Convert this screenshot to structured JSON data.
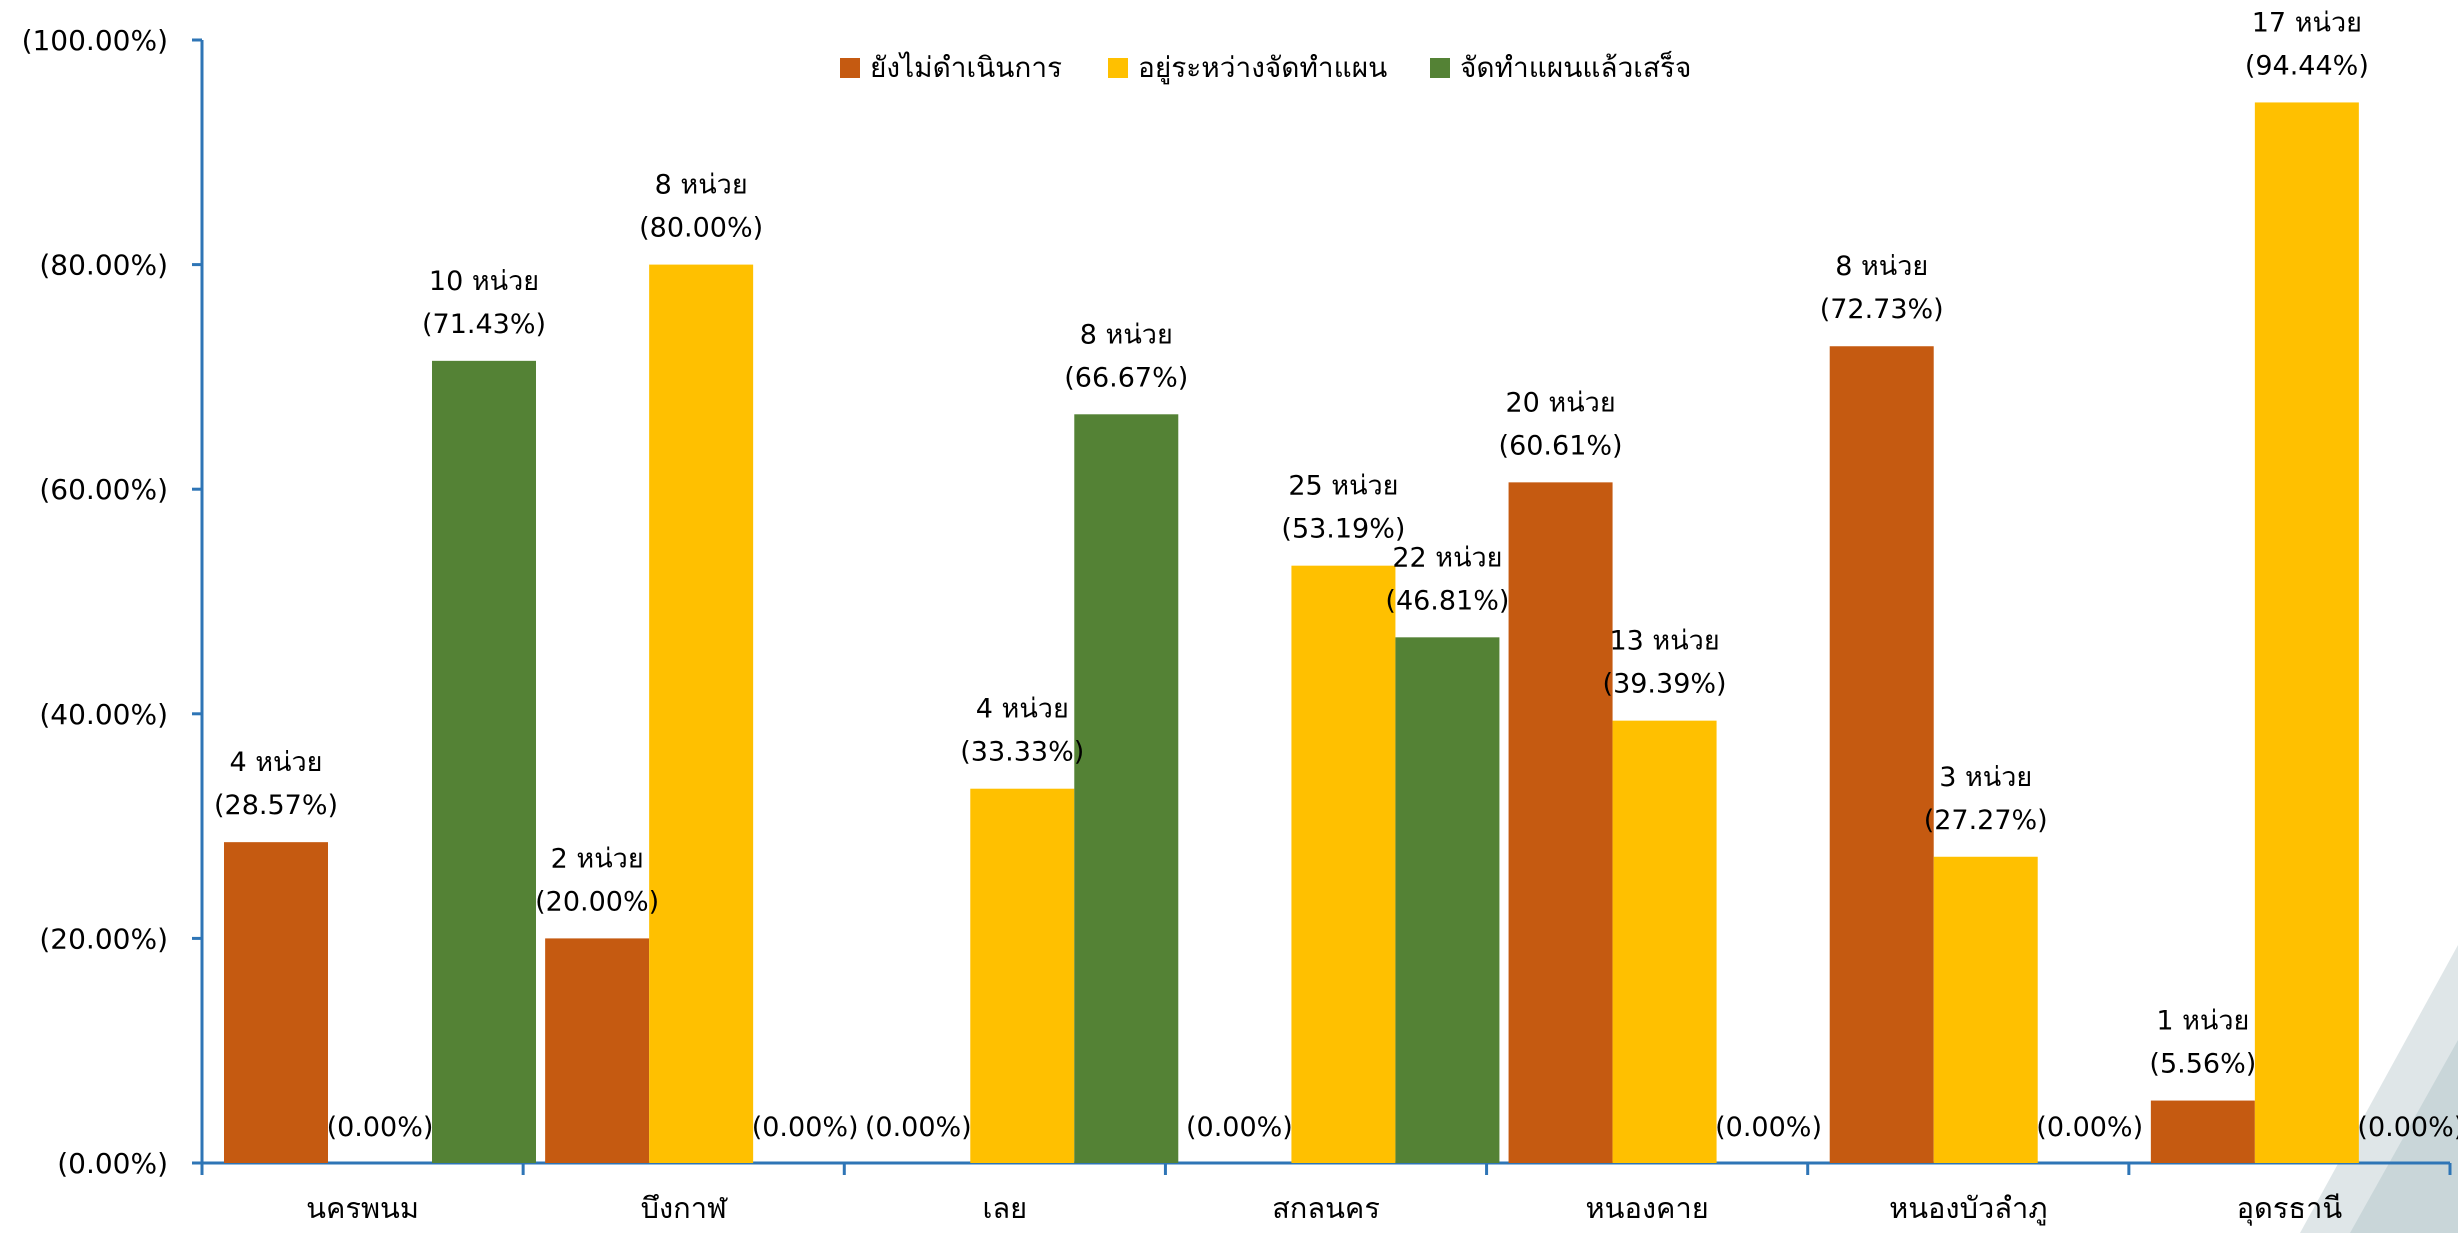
{
  "chart_data": {
    "type": "bar",
    "categories": [
      "นครพนม",
      "บึงกาฬ",
      "เลย",
      "สกลนคร",
      "หนองคาย",
      "หนองบัวลำภู",
      "อุดรธานี"
    ],
    "series": [
      {
        "name": "ยังไม่ดำเนินการ",
        "color": "#C55A11",
        "values": [
          28.57,
          20.0,
          0,
          0,
          60.61,
          72.73,
          5.56
        ],
        "labels": [
          [
            "4 หน่วย",
            "(28.57%)"
          ],
          [
            "2 หน่วย",
            "(20.00%)"
          ],
          [
            "(0.00%)"
          ],
          [
            "(0.00%)"
          ],
          [
            "20 หน่วย",
            "(60.61%)"
          ],
          [
            "8 หน่วย",
            "(72.73%)"
          ],
          [
            "1 หน่วย",
            "(5.56%)"
          ]
        ]
      },
      {
        "name": "อยู่ระหว่างจัดทำแผน",
        "color": "#FFC000",
        "values": [
          0,
          80.0,
          33.33,
          53.19,
          39.39,
          27.27,
          94.44
        ],
        "labels": [
          [
            "(0.00%)"
          ],
          [
            "8 หน่วย",
            "(80.00%)"
          ],
          [
            "4 หน่วย",
            "(33.33%)"
          ],
          [
            "25 หน่วย",
            "(53.19%)"
          ],
          [
            "13 หน่วย",
            "(39.39%)"
          ],
          [
            "3 หน่วย",
            "(27.27%)"
          ],
          [
            "17 หน่วย",
            "(94.44%)"
          ]
        ]
      },
      {
        "name": "จัดทำแผนแล้วเสร็จ",
        "color": "#548235",
        "values": [
          71.43,
          0,
          66.67,
          46.81,
          0,
          0,
          0
        ],
        "labels": [
          [
            "10 หน่วย",
            "(71.43%)"
          ],
          [
            "(0.00%)"
          ],
          [
            "8 หน่วย",
            "(66.67%)"
          ],
          [
            "22 หน่วย",
            "(46.81%)"
          ],
          [
            "(0.00%)"
          ],
          [
            "(0.00%)"
          ],
          [
            "(0.00%)"
          ]
        ]
      }
    ],
    "ylim": [
      0,
      100
    ],
    "yticks": [
      "(0.00%)",
      "(20.00%)",
      "(40.00%)",
      "(60.00%)",
      "(80.00%)",
      "(100.00%)"
    ],
    "legend_position": "top-center",
    "axis_color": "#2E75B6"
  }
}
